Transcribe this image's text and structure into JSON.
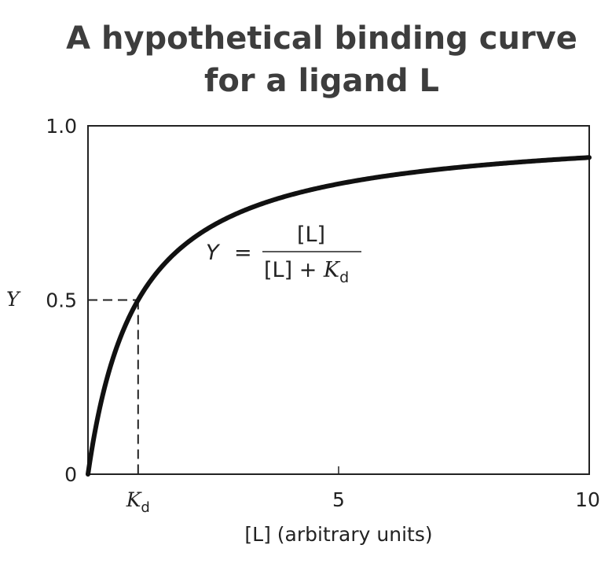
{
  "chart_data": {
    "type": "line",
    "title_line1": "A hypothetical binding curve",
    "title_line2": "for a ligand L",
    "xlabel": "[L] (arbitrary units)",
    "ylabel": "Y",
    "xlim": [
      0,
      10
    ],
    "ylim": [
      0,
      1.0
    ],
    "x_ticks": [
      {
        "value": 1,
        "label": "K",
        "sub": "d"
      },
      {
        "value": 5,
        "label": "5"
      },
      {
        "value": 10,
        "label": "10"
      }
    ],
    "y_ticks": [
      {
        "value": 0,
        "label": "0"
      },
      {
        "value": 0.5,
        "label": "0.5"
      },
      {
        "value": 1.0,
        "label": "1.0"
      }
    ],
    "kd": 1,
    "series": [
      {
        "x": [
          0,
          0.05,
          0.1,
          0.2,
          0.3,
          0.5,
          0.75,
          1,
          1.5,
          2,
          3,
          4,
          5,
          6,
          7,
          8,
          9,
          10
        ],
        "y": [
          0,
          0.048,
          0.091,
          0.167,
          0.231,
          0.333,
          0.429,
          0.5,
          0.6,
          0.667,
          0.75,
          0.8,
          0.833,
          0.857,
          0.875,
          0.889,
          0.9,
          0.909
        ]
      }
    ],
    "annotation": {
      "lhs": "Y",
      "equals": "=",
      "numerator": "[L]",
      "denominator_left": "[L] + ",
      "denominator_k": "K",
      "denominator_sub": "d"
    },
    "grid": false
  }
}
